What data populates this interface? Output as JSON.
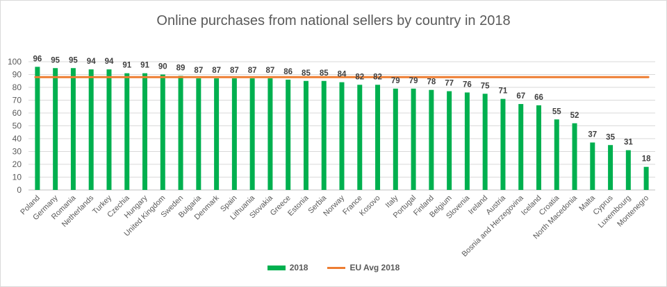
{
  "colors": {
    "bar": "#00b04f",
    "line": "#ed7d31",
    "grid": "#d9d9d9",
    "axis": "#bfbfbf"
  },
  "chart_data": {
    "type": "bar",
    "title": "Online purchases from national sellers by country in 2018",
    "xlabel": "",
    "ylabel": "",
    "ylim": [
      0,
      100
    ],
    "yticks": [
      0,
      10,
      20,
      30,
      40,
      50,
      60,
      70,
      80,
      90,
      100
    ],
    "grid": true,
    "legend_position": "bottom",
    "categories": [
      "Poland",
      "Germany",
      "Romania",
      "Netherlands",
      "Turkey",
      "Czechia",
      "Hungary",
      "United Kingdom",
      "Sweden",
      "Bulgaria",
      "Denmark",
      "Spain",
      "Lithuania",
      "Slovakia",
      "Greece",
      "Estonia",
      "Serbia",
      "Norway",
      "France",
      "Kosovo",
      "Italy",
      "Portugal",
      "Finland",
      "Belgium",
      "Slovenia",
      "Ireland",
      "Austria",
      "Bosnia and Herzegovina",
      "Iceland",
      "Croatia",
      "North Macedonia",
      "Malta",
      "Cyprus",
      "Luxembourg",
      "Montenegro"
    ],
    "series": [
      {
        "name": "2018",
        "type": "bar",
        "values": [
          96,
          95,
          95,
          94,
          94,
          91,
          91,
          90,
          89,
          87,
          87,
          87,
          87,
          87,
          86,
          85,
          85,
          84,
          82,
          82,
          79,
          79,
          78,
          77,
          76,
          75,
          71,
          67,
          66,
          55,
          52,
          37,
          35,
          31,
          18
        ]
      },
      {
        "name": "EU Avg 2018",
        "type": "line",
        "constant": 88
      }
    ]
  }
}
